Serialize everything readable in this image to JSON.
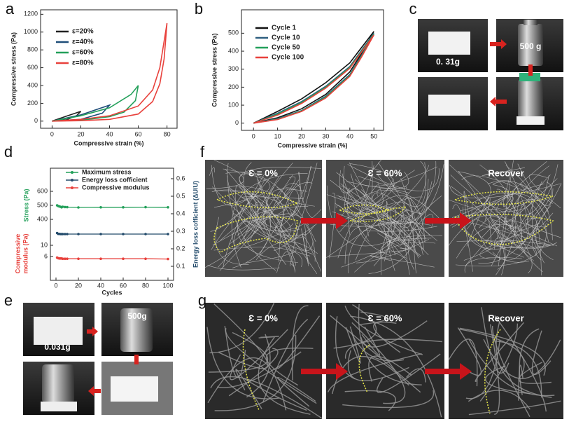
{
  "panel_labels": [
    "a",
    "b",
    "c",
    "d",
    "e",
    "f",
    "g"
  ],
  "chart_data": [
    {
      "type": "line",
      "xlabel": "Compressive strain (%)",
      "ylabel": "Compressive stress (Pa)",
      "xlim": [
        -8,
        87
      ],
      "ylim": [
        -80,
        1250
      ],
      "xticks": [
        0,
        20,
        40,
        60,
        80
      ],
      "yticks": [
        0,
        200,
        400,
        600,
        800,
        1000,
        1200
      ],
      "series": [
        {
          "name": "ε=20%",
          "color": "#222222",
          "x": [
            0,
            10,
            20,
            17,
            10,
            0
          ],
          "values": [
            0,
            55,
            110,
            60,
            15,
            0
          ]
        },
        {
          "name": "ε=40%",
          "color": "#1f4e79",
          "x": [
            0,
            20,
            40,
            35,
            20,
            0
          ],
          "values": [
            0,
            70,
            180,
            90,
            20,
            0
          ]
        },
        {
          "name": "ε=60%",
          "color": "#23a05a",
          "x": [
            0,
            20,
            40,
            55,
            60,
            58,
            50,
            40,
            20,
            0
          ],
          "values": [
            0,
            60,
            150,
            300,
            400,
            230,
            100,
            50,
            10,
            0
          ]
        },
        {
          "name": "ε=80%",
          "color": "#e8413c",
          "x": [
            0,
            20,
            40,
            60,
            70,
            75,
            80,
            78,
            75,
            70,
            60,
            40,
            20,
            0
          ],
          "values": [
            0,
            20,
            60,
            170,
            350,
            600,
            1100,
            700,
            420,
            220,
            80,
            20,
            5,
            0
          ]
        }
      ]
    },
    {
      "type": "line",
      "xlabel": "Compressive strain (%)",
      "ylabel": "Compressive stress (Pa)",
      "xlim": [
        -5,
        54
      ],
      "ylim": [
        -40,
        630
      ],
      "xticks": [
        0,
        10,
        20,
        30,
        40,
        50
      ],
      "yticks": [
        0,
        100,
        200,
        300,
        400,
        500
      ],
      "series": [
        {
          "name": "Cycle 1",
          "color": "#111111",
          "x": [
            0,
            10,
            20,
            30,
            40,
            50,
            45,
            40,
            30,
            20,
            10,
            0
          ],
          "values": [
            0,
            65,
            135,
            225,
            335,
            510,
            390,
            285,
            160,
            80,
            30,
            0
          ]
        },
        {
          "name": "Cycle 10",
          "color": "#2f5f80",
          "x": [
            0,
            10,
            20,
            30,
            40,
            50,
            45,
            40,
            30,
            20,
            10,
            0
          ],
          "values": [
            0,
            55,
            120,
            205,
            315,
            500,
            380,
            270,
            150,
            70,
            25,
            0
          ]
        },
        {
          "name": "Cycle 50",
          "color": "#23a05a",
          "x": [
            0,
            10,
            20,
            30,
            40,
            50,
            45,
            40,
            30,
            20,
            10,
            0
          ],
          "values": [
            0,
            50,
            115,
            200,
            310,
            495,
            375,
            265,
            145,
            68,
            22,
            0
          ]
        },
        {
          "name": "Cycle 100",
          "color": "#e8413c",
          "x": [
            0,
            10,
            20,
            30,
            40,
            50,
            45,
            40,
            30,
            20,
            10,
            0
          ],
          "values": [
            0,
            45,
            110,
            195,
            305,
            490,
            370,
            260,
            140,
            65,
            20,
            0
          ]
        }
      ]
    },
    {
      "type": "line",
      "xlabel": "Cycles",
      "ylabel": "Stress (Pa)",
      "y_modulus_label": [
        "Compressive",
        "modulus (Pa)"
      ],
      "y2label": "Energy loss cofficient (ΔU/U)",
      "xlim": [
        -5,
        105
      ],
      "xticks": [
        0,
        20,
        40,
        60,
        80,
        100
      ],
      "ylim": [
        -35,
        765
      ],
      "yticks": [
        400,
        500,
        600
      ],
      "y_modulus_lim": [
        -2.5,
        37.5
      ],
      "y_modulus_ticks": [
        6,
        10
      ],
      "y2lim": [
        0.02,
        0.66
      ],
      "y2ticks": [
        0.1,
        0.2,
        0.3,
        0.4,
        0.5,
        0.6
      ],
      "x": [
        1,
        2,
        3,
        4,
        5,
        6,
        8,
        10,
        20,
        40,
        60,
        80,
        100
      ],
      "series": [
        {
          "name": "Maximum stress",
          "color": "#23a05a",
          "axis": "y",
          "values": [
            500,
            495,
            492,
            490,
            486,
            490,
            488,
            487,
            485,
            486,
            486,
            487,
            486
          ]
        },
        {
          "name": "Energy loss cofficient",
          "color": "#234b6b",
          "axis": "y2",
          "values": [
            0.29,
            0.285,
            0.285,
            0.284,
            0.284,
            0.284,
            0.284,
            0.284,
            0.284,
            0.284,
            0.284,
            0.284,
            0.284
          ]
        },
        {
          "name": "Compressive modulus",
          "color": "#e8413c",
          "axis": "modulus",
          "values": [
            5.6,
            5.4,
            5.3,
            5.3,
            5.3,
            5.2,
            5.2,
            5.2,
            5.2,
            5.2,
            5.2,
            5.2,
            5.1
          ]
        }
      ]
    }
  ],
  "photos": {
    "c": [
      "0. 31g",
      "500 g"
    ],
    "e": [
      "0.031g",
      "500g"
    ]
  },
  "sem": {
    "f": [
      "Ɛ = 0%",
      "Ɛ = 60%",
      "Recover"
    ],
    "g": [
      "Ɛ = 0%",
      "Ɛ = 60%",
      "Recover"
    ]
  }
}
